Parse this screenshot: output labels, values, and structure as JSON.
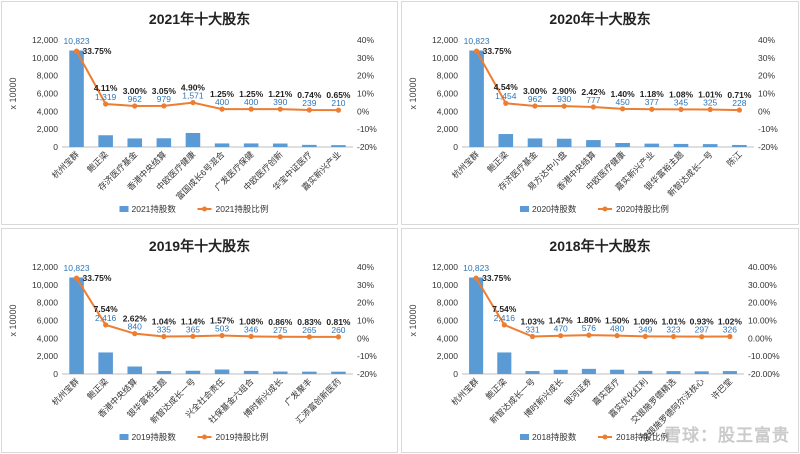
{
  "chart_data": [
    {
      "type": "bar",
      "title": "2021年十大股东",
      "ylabel": "x 10000",
      "ylim": [
        0,
        12000
      ],
      "y2lim": [
        -20,
        40
      ],
      "y_ticks": [
        "0",
        "2,000",
        "4,000",
        "6,000",
        "8,000",
        "10,000",
        "12,000"
      ],
      "y2_ticks": [
        "-20%",
        "-10%",
        "0%",
        "10%",
        "20%",
        "30%",
        "40%"
      ],
      "categories": [
        "杭州宝群",
        "鲍正梁",
        "存济医疗基金",
        "香港中央结算",
        "中欧医疗健康",
        "富国成长6号混合",
        "广发医疗保健",
        "中欧医疗创新",
        "华宝中证医疗",
        "嘉实新兴产业"
      ],
      "series": [
        {
          "name": "2021持股数",
          "kind": "bar",
          "color": "#5b9bd5",
          "values": [
            10823,
            1319,
            962,
            979,
            1571,
            400,
            400,
            390,
            239,
            210
          ],
          "labels": [
            "10,823",
            "1,319",
            "962",
            "979",
            "1,571",
            "400",
            "400",
            "390",
            "239",
            "210"
          ]
        },
        {
          "name": "2021持股比例",
          "kind": "line",
          "color": "#ed7d31",
          "values": [
            33.75,
            4.11,
            3.0,
            3.05,
            4.9,
            1.25,
            1.25,
            1.21,
            0.74,
            0.65
          ],
          "labels": [
            "33.75%",
            "4.11%",
            "3.00%",
            "3.05%",
            "4.90%",
            "1.25%",
            "1.25%",
            "1.21%",
            "0.74%",
            "0.65%"
          ]
        }
      ],
      "legend": "bottom"
    },
    {
      "type": "bar",
      "title": "2020年十大股东",
      "ylabel": "x 10000",
      "ylim": [
        0,
        12000
      ],
      "y2lim": [
        -20,
        40
      ],
      "y_ticks": [
        "0",
        "2,000",
        "4,000",
        "6,000",
        "8,000",
        "10,000",
        "12,000"
      ],
      "y2_ticks": [
        "-20%",
        "-10%",
        "0%",
        "10%",
        "20%",
        "30%",
        "40%"
      ],
      "categories": [
        "杭州宝群",
        "鲍正梁",
        "存济医疗基金",
        "易方达中小盘",
        "香港中央结算",
        "中欧医疗健康",
        "嘉实新兴产业",
        "银华富裕主题",
        "新智达成长一号",
        "陈江"
      ],
      "series": [
        {
          "name": "2020持股数",
          "kind": "bar",
          "color": "#5b9bd5",
          "values": [
            10823,
            1454,
            962,
            930,
            777,
            450,
            377,
            345,
            325,
            228
          ],
          "labels": [
            "10,823",
            "1,454",
            "962",
            "930",
            "777",
            "450",
            "377",
            "345",
            "325",
            "228"
          ]
        },
        {
          "name": "2020持股比例",
          "kind": "line",
          "color": "#ed7d31",
          "values": [
            33.75,
            4.54,
            3.0,
            2.9,
            2.42,
            1.4,
            1.18,
            1.08,
            1.01,
            0.71
          ],
          "labels": [
            "33.75%",
            "4.54%",
            "3.00%",
            "2.90%",
            "2.42%",
            "1.40%",
            "1.18%",
            "1.08%",
            "1.01%",
            "0.71%"
          ]
        }
      ],
      "legend": "bottom"
    },
    {
      "type": "bar",
      "title": "2019年十大股东",
      "ylabel": "x 10000",
      "ylim": [
        0,
        12000
      ],
      "y2lim": [
        -20,
        40
      ],
      "y_ticks": [
        "0",
        "2,000",
        "4,000",
        "6,000",
        "8,000",
        "10,000",
        "12,000"
      ],
      "y2_ticks": [
        "-20%",
        "-10%",
        "0%",
        "10%",
        "20%",
        "30%",
        "40%"
      ],
      "categories": [
        "杭州宝群",
        "鲍正梁",
        "香港中央结算",
        "银华富裕主题",
        "新智达成长一号",
        "兴全社会责任",
        "社保基金六组合",
        "博时新兴成长",
        "广发聚丰",
        "汇添富创新医药"
      ],
      "series": [
        {
          "name": "2019持股数",
          "kind": "bar",
          "color": "#5b9bd5",
          "values": [
            10823,
            2416,
            840,
            335,
            365,
            503,
            346,
            275,
            265,
            260
          ],
          "labels": [
            "10,823",
            "2,416",
            "840",
            "335",
            "365",
            "503",
            "346",
            "275",
            "265",
            "260"
          ]
        },
        {
          "name": "2019持股比例",
          "kind": "line",
          "color": "#ed7d31",
          "values": [
            33.75,
            7.54,
            2.62,
            1.04,
            1.14,
            1.57,
            1.08,
            0.86,
            0.83,
            0.81
          ],
          "labels": [
            "33.75%",
            "7.54%",
            "2.62%",
            "1.04%",
            "1.14%",
            "1.57%",
            "1.08%",
            "0.86%",
            "0.83%",
            "0.81%"
          ]
        }
      ],
      "legend": "bottom"
    },
    {
      "type": "bar",
      "title": "2018年十大股东",
      "ylabel": "x 10000",
      "ylim": [
        0,
        12000
      ],
      "y2lim": [
        -20,
        40
      ],
      "y_ticks": [
        "0",
        "2,000",
        "4,000",
        "6,000",
        "8,000",
        "10,000",
        "12,000"
      ],
      "y2_ticks": [
        "-20.00%",
        "-10.00%",
        "0.00%",
        "10.00%",
        "20.00%",
        "30.00%",
        "40.00%"
      ],
      "categories": [
        "杭州宝群",
        "鲍正梁",
        "新智达成长一号",
        "博时新兴成长",
        "银河证券",
        "嘉实医疗",
        "嘉实优化红利",
        "交银施罗德精选",
        "交银施罗德阿尔法核心",
        "许巴堂"
      ],
      "series": [
        {
          "name": "2018持股数",
          "kind": "bar",
          "color": "#5b9bd5",
          "values": [
            10823,
            2416,
            331,
            470,
            576,
            480,
            349,
            323,
            297,
            326
          ],
          "labels": [
            "10,823",
            "2,416",
            "331",
            "470",
            "576",
            "480",
            "349",
            "323",
            "297",
            "326"
          ]
        },
        {
          "name": "2018持股比例",
          "kind": "line",
          "color": "#ed7d31",
          "values": [
            33.75,
            7.54,
            1.03,
            1.47,
            1.8,
            1.5,
            1.09,
            1.01,
            0.93,
            1.02
          ],
          "labels": [
            "33.75%",
            "7.54%",
            "1.03%",
            "1.47%",
            "1.80%",
            "1.50%",
            "1.09%",
            "1.01%",
            "0.93%",
            "1.02%"
          ]
        }
      ],
      "legend": "bottom"
    }
  ],
  "watermark": "雪球：股王富贵"
}
